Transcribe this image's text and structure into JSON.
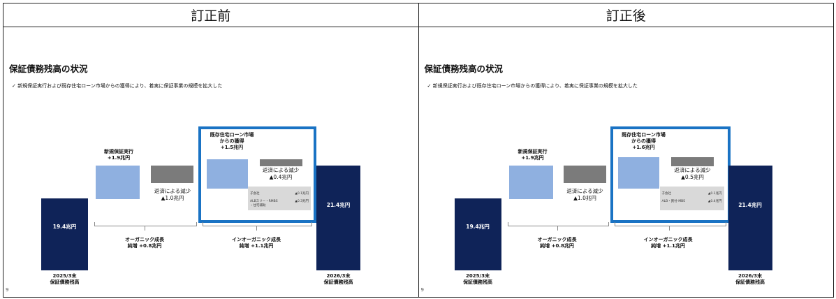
{
  "headers": [
    "訂正前",
    "訂正後"
  ],
  "slides": [
    {
      "title": "保証債務残高の状況",
      "bullet": "✓ 新規保証実行および既存住宅ローン市場からの獲得により、着実に保証事業の規模を拡大した",
      "start_value": "19.4兆円",
      "end_value": "21.4兆円",
      "new_guarantee": "新規保証実行\n+1.9兆円",
      "repay_organic": "返済による減少\n▲1.0兆円",
      "existing_acq": "既存住宅ローン市場\nからの獲得\n+1.5兆円",
      "repay_inorganic": "返済による減少\n▲0.4兆円",
      "breakdown": [
        {
          "label": "子会社",
          "value": "▲0.1兆円"
        },
        {
          "label": "ALBスリー・RMBS\n・住宅補助",
          "value": "▲0.3兆円"
        }
      ],
      "organic": "オーガニック成長\n純増 +0.8兆円",
      "inorganic": "インオーガニック成長\n純増 +1.1兆円",
      "start_label": "2025/3末\n保証債務残高",
      "end_label": "2026/3末\n保証債務残高",
      "page": "9"
    },
    {
      "title": "保証債務残高の状況",
      "bullet": "✓ 新規保証実行および既存住宅ローン市場からの獲得により、着実に保証事業の規模を拡大した",
      "start_value": "19.4兆円",
      "end_value": "21.4兆円",
      "new_guarantee": "新規保証実行\n+1.9兆円",
      "repay_organic": "返済による減少\n▲1.0兆円",
      "existing_acq": "既存住宅ローン市場\nからの獲得\n+1.6兆円",
      "repay_inorganic": "返済による減少\n▲0.5兆円",
      "breakdown": [
        {
          "label": "子会社",
          "value": "▲0.1兆円"
        },
        {
          "label": "ALB・買付-MBS",
          "value": "▲0.4兆円"
        }
      ],
      "organic": "オーガニック成長\n純増 +0.8兆円",
      "inorganic": "インオーガニック成長\n純増 +1.1兆円",
      "start_label": "2025/3末\n保証債務残高",
      "end_label": "2026/3末\n保証債務残高",
      "page": "9"
    }
  ]
}
